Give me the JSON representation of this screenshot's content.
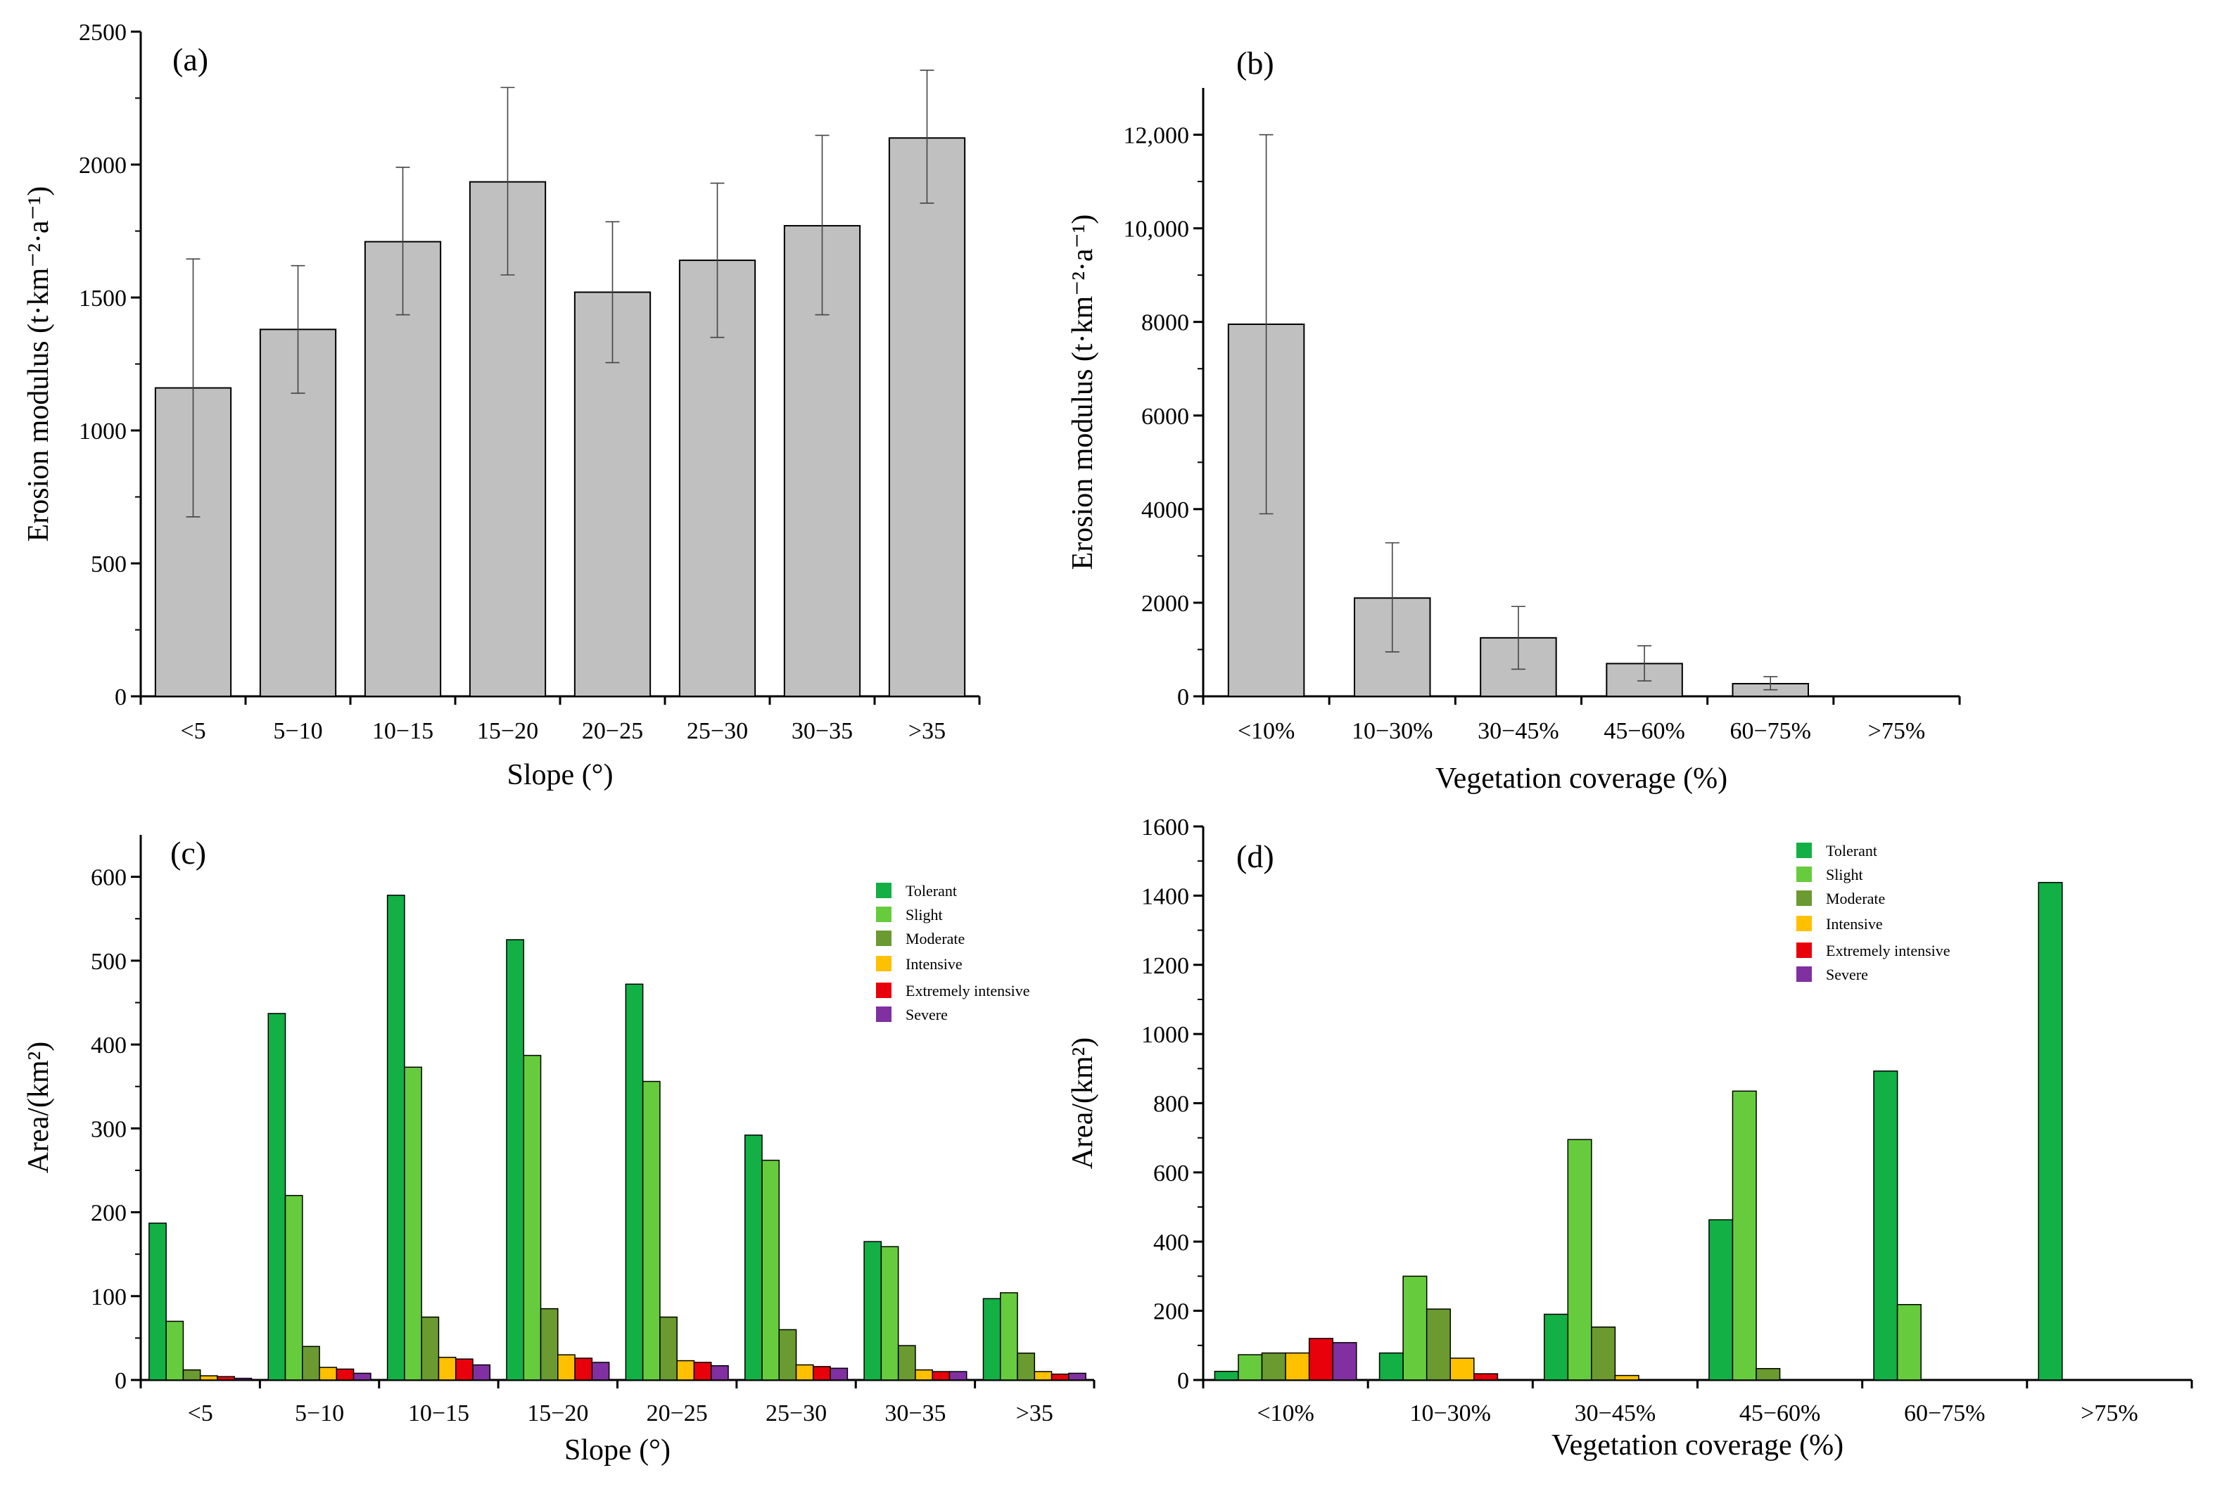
{
  "colors": {
    "Tolerant": "#12b045",
    "Slight": "#66cc3d",
    "Moderate": "#6a9a30",
    "Intensive": "#ffc000",
    "Extremely intensive": "#e8000b",
    "Severe": "#8030a0",
    "bar_gray": "#c0c0c0"
  },
  "chart_data": [
    {
      "id": "a",
      "panel_label": "(a)",
      "type": "bar",
      "categories": [
        "<5",
        "5−10",
        "10−15",
        "15−20",
        "20−25",
        "25−30",
        "30−35",
        ">35"
      ],
      "values": [
        1160,
        1380,
        1710,
        1935,
        1520,
        1640,
        1770,
        2100
      ],
      "error_low": [
        675,
        1140,
        1435,
        1585,
        1255,
        1350,
        1435,
        1855
      ],
      "error_high": [
        1645,
        1620,
        1990,
        2290,
        1785,
        1930,
        2110,
        2355
      ],
      "xlabel": "Slope (°)",
      "ylabel": "Erosion modulus (t·km⁻²·a⁻¹)",
      "ylim": [
        0,
        2500
      ],
      "yticks": [
        "0",
        "500",
        "1000",
        "1500",
        "2000",
        "2500"
      ],
      "ytick_values": [
        0,
        500,
        1000,
        1500,
        2000,
        2500
      ]
    },
    {
      "id": "b",
      "panel_label": "(b)",
      "type": "bar",
      "categories": [
        "<10%",
        "10−30%",
        "30−45%",
        "45−60%",
        "60−75%",
        ">75%"
      ],
      "values": [
        7950,
        2100,
        1250,
        700,
        270,
        0
      ],
      "error_low": [
        3900,
        950,
        580,
        330,
        140,
        0
      ],
      "error_high": [
        12000,
        3280,
        1920,
        1080,
        420,
        0
      ],
      "xlabel": "Vegetation coverage (%)",
      "ylabel": "Erosion modulus (t·km⁻²·a⁻¹)",
      "ylim": [
        0,
        13000
      ],
      "yticks": [
        "0",
        "2000",
        "4000",
        "6000",
        "8000",
        "10,000",
        "12,000"
      ],
      "ytick_values": [
        0,
        2000,
        4000,
        6000,
        8000,
        10000,
        12000
      ]
    },
    {
      "id": "c",
      "panel_label": "(c)",
      "type": "bar",
      "categories": [
        "<5",
        "5−10",
        "10−15",
        "15−20",
        "20−25",
        "25−30",
        "30−35",
        ">35"
      ],
      "series": [
        {
          "name": "Tolerant",
          "values": [
            187,
            437,
            578,
            525,
            472,
            292,
            165,
            97
          ]
        },
        {
          "name": "Slight",
          "values": [
            70,
            220,
            373,
            387,
            356,
            262,
            159,
            104
          ]
        },
        {
          "name": "Moderate",
          "values": [
            12,
            40,
            75,
            85,
            75,
            60,
            41,
            32
          ]
        },
        {
          "name": "Intensive",
          "values": [
            5,
            15,
            27,
            30,
            23,
            18,
            12,
            10
          ]
        },
        {
          "name": "Extremely intensive",
          "values": [
            4,
            13,
            25,
            26,
            21,
            16,
            10,
            7
          ]
        },
        {
          "name": "Severe",
          "values": [
            2,
            8,
            18,
            21,
            17,
            14,
            10,
            8
          ]
        }
      ],
      "xlabel": "Slope (°)",
      "ylabel": "Area/(km²)",
      "ylim": [
        0,
        650
      ],
      "yticks": [
        "0",
        "100",
        "200",
        "300",
        "400",
        "500",
        "600"
      ],
      "ytick_values": [
        0,
        100,
        200,
        300,
        400,
        500,
        600
      ]
    },
    {
      "id": "d",
      "panel_label": "(d)",
      "type": "bar",
      "categories": [
        "<10%",
        "10−30%",
        "30−45%",
        "45−60%",
        "60−75%",
        ">75%"
      ],
      "series": [
        {
          "name": "Tolerant",
          "values": [
            25,
            78,
            190,
            463,
            893,
            1438
          ]
        },
        {
          "name": "Slight",
          "values": [
            73,
            300,
            695,
            835,
            218,
            0
          ]
        },
        {
          "name": "Moderate",
          "values": [
            78,
            205,
            153,
            33,
            0,
            0
          ]
        },
        {
          "name": "Intensive",
          "values": [
            78,
            63,
            13,
            0,
            0,
            0
          ]
        },
        {
          "name": "Extremely intensive",
          "values": [
            120,
            18,
            0,
            0,
            0,
            0
          ]
        },
        {
          "name": "Severe",
          "values": [
            108,
            0,
            0,
            0,
            0,
            0
          ]
        }
      ],
      "xlabel": "Vegetation coverage (%)",
      "ylabel": "Area/(km²)",
      "ylim": [
        0,
        1600
      ],
      "yticks": [
        "0",
        "200",
        "400",
        "600",
        "800",
        "1000",
        "1200",
        "1400",
        "1600"
      ],
      "ytick_values": [
        0,
        200,
        400,
        600,
        800,
        1000,
        1200,
        1400,
        1600
      ]
    }
  ]
}
